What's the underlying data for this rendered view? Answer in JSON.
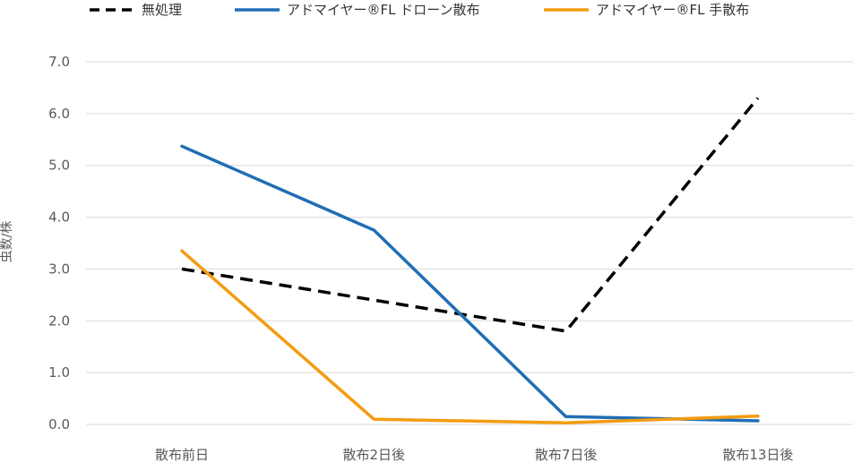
{
  "chart_data": {
    "type": "line",
    "categories": [
      "散布前日",
      "散布2日後",
      "散布7日後",
      "散布13日後"
    ],
    "series": [
      {
        "name": "無処理",
        "values": [
          3.0,
          2.4,
          1.8,
          6.3
        ],
        "color": "#000000",
        "dash": true
      },
      {
        "name": "アドマイヤー®FL ドローン散布",
        "values": [
          5.37,
          3.75,
          0.15,
          0.07
        ],
        "color": "#1f6eb5",
        "dash": false
      },
      {
        "name": "アドマイヤー®FL 手散布",
        "values": [
          3.35,
          0.1,
          0.03,
          0.16
        ],
        "color": "#f39c12",
        "dash": false
      }
    ],
    "yticks": [
      "0.0",
      "1.0",
      "2.0",
      "3.0",
      "4.0",
      "5.0",
      "6.0",
      "7.0"
    ],
    "ylim": [
      0,
      7
    ],
    "ylabel": "虫数/株",
    "xlabel": "",
    "title": "",
    "grid": true,
    "legend": "top"
  }
}
